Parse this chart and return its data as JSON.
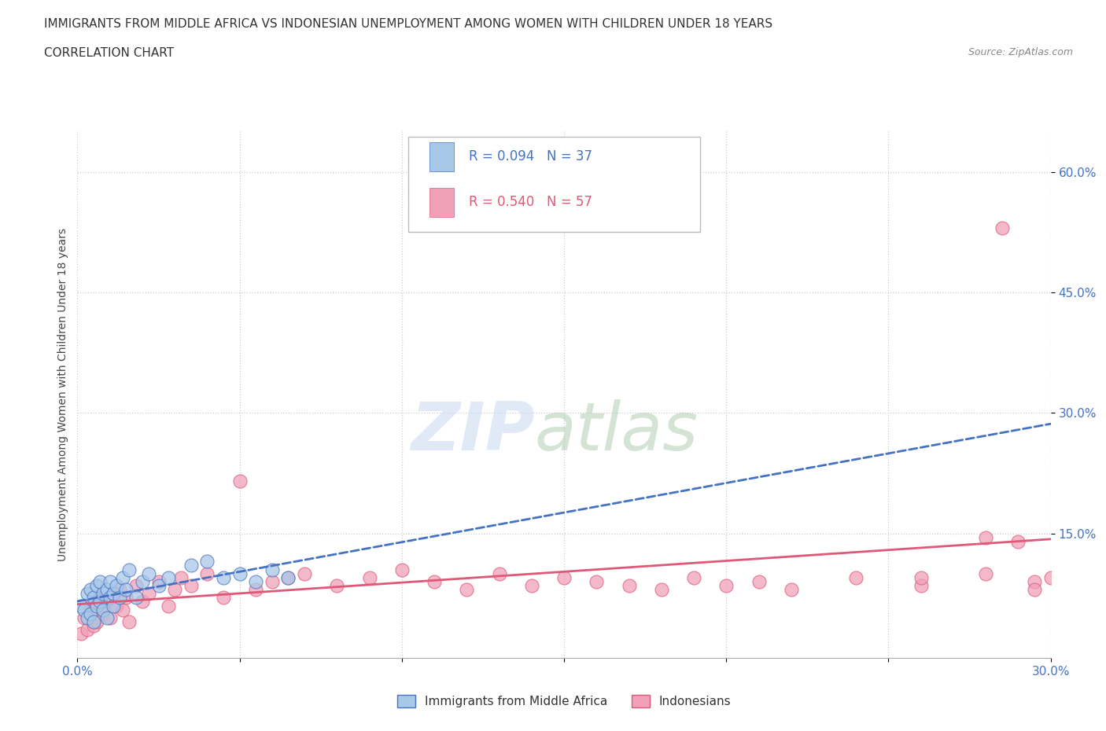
{
  "title": "IMMIGRANTS FROM MIDDLE AFRICA VS INDONESIAN UNEMPLOYMENT AMONG WOMEN WITH CHILDREN UNDER 18 YEARS",
  "subtitle": "CORRELATION CHART",
  "source": "Source: ZipAtlas.com",
  "xlim": [
    0.0,
    0.3
  ],
  "ylim": [
    -0.005,
    0.65
  ],
  "ylabel_label": "Unemployment Among Women with Children Under 18 years",
  "legend_labels": [
    "Immigrants from Middle Africa",
    "Indonesians"
  ],
  "r1": 0.094,
  "n1": 37,
  "r2": 0.54,
  "n2": 57,
  "color_blue": "#a8c8e8",
  "color_pink": "#f0a0b8",
  "color_blue_dark": "#4472c4",
  "color_pink_dark": "#e05878",
  "watermark_zip": "ZIP",
  "watermark_atlas": "atlas",
  "blue_scatter_x": [
    0.001,
    0.002,
    0.003,
    0.003,
    0.004,
    0.004,
    0.005,
    0.005,
    0.006,
    0.006,
    0.007,
    0.007,
    0.008,
    0.008,
    0.009,
    0.009,
    0.01,
    0.01,
    0.011,
    0.011,
    0.012,
    0.013,
    0.014,
    0.015,
    0.016,
    0.018,
    0.02,
    0.022,
    0.025,
    0.028,
    0.035,
    0.04,
    0.045,
    0.05,
    0.055,
    0.06,
    0.065
  ],
  "blue_scatter_y": [
    0.06,
    0.055,
    0.075,
    0.045,
    0.08,
    0.05,
    0.07,
    0.04,
    0.085,
    0.06,
    0.09,
    0.065,
    0.075,
    0.055,
    0.08,
    0.045,
    0.07,
    0.09,
    0.06,
    0.075,
    0.085,
    0.07,
    0.095,
    0.08,
    0.105,
    0.07,
    0.09,
    0.1,
    0.085,
    0.095,
    0.11,
    0.115,
    0.095,
    0.1,
    0.09,
    0.105,
    0.095
  ],
  "pink_scatter_x": [
    0.001,
    0.002,
    0.003,
    0.004,
    0.005,
    0.005,
    0.006,
    0.007,
    0.008,
    0.009,
    0.01,
    0.011,
    0.012,
    0.013,
    0.014,
    0.015,
    0.016,
    0.018,
    0.02,
    0.022,
    0.025,
    0.028,
    0.03,
    0.032,
    0.035,
    0.04,
    0.045,
    0.05,
    0.055,
    0.06,
    0.065,
    0.07,
    0.08,
    0.09,
    0.1,
    0.11,
    0.12,
    0.13,
    0.14,
    0.15,
    0.16,
    0.17,
    0.18,
    0.19,
    0.2,
    0.21,
    0.22,
    0.24,
    0.26,
    0.28,
    0.285,
    0.29,
    0.295,
    0.3,
    0.295,
    0.28,
    0.26
  ],
  "pink_scatter_y": [
    0.025,
    0.045,
    0.03,
    0.06,
    0.035,
    0.055,
    0.04,
    0.07,
    0.05,
    0.065,
    0.045,
    0.075,
    0.06,
    0.08,
    0.055,
    0.07,
    0.04,
    0.085,
    0.065,
    0.075,
    0.09,
    0.06,
    0.08,
    0.095,
    0.085,
    0.1,
    0.07,
    0.215,
    0.08,
    0.09,
    0.095,
    0.1,
    0.085,
    0.095,
    0.105,
    0.09,
    0.08,
    0.1,
    0.085,
    0.095,
    0.09,
    0.085,
    0.08,
    0.095,
    0.085,
    0.09,
    0.08,
    0.095,
    0.085,
    0.1,
    0.53,
    0.14,
    0.09,
    0.095,
    0.08,
    0.145,
    0.095
  ]
}
